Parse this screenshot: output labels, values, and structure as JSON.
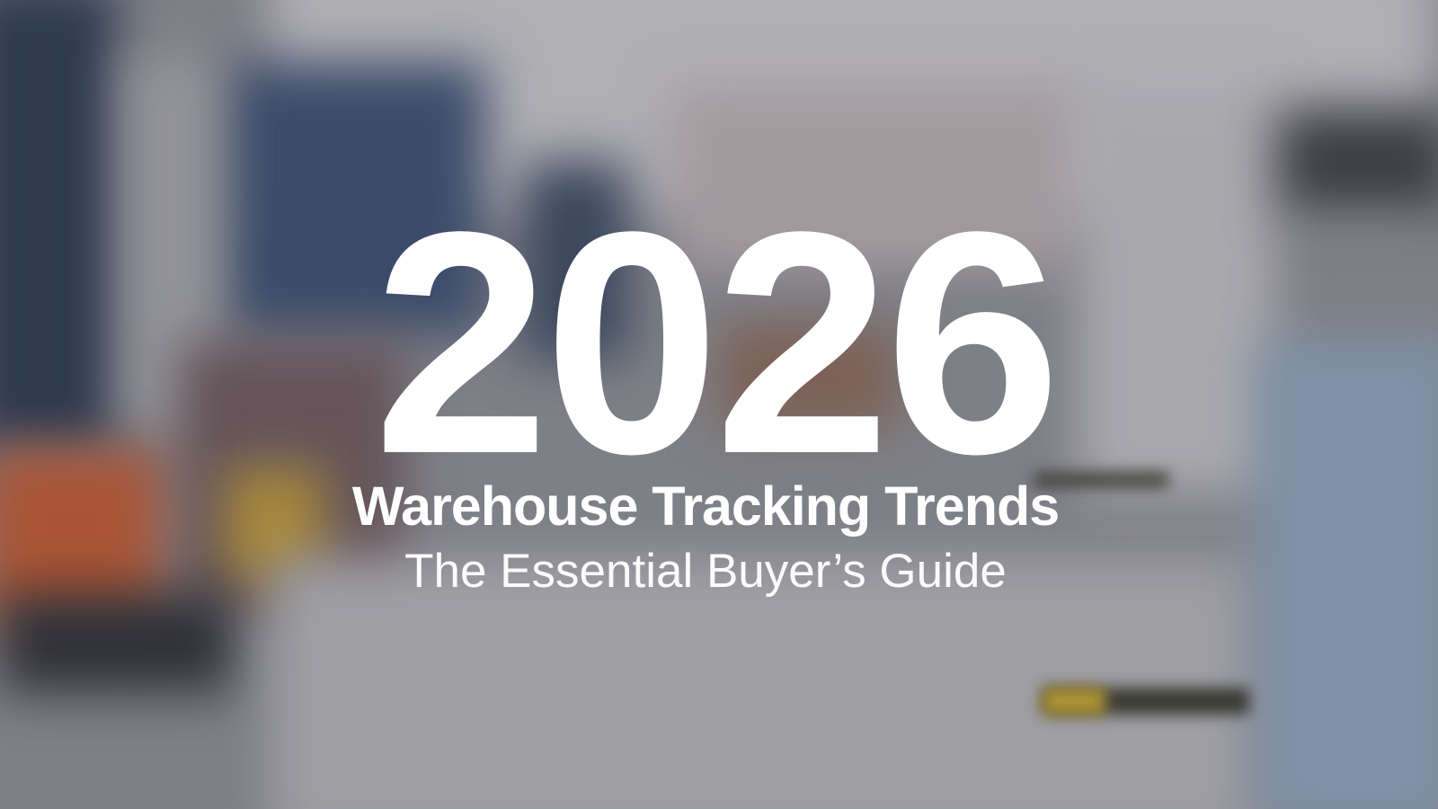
{
  "hero": {
    "year": "2026",
    "title": "Warehouse Tracking Trends",
    "subtitle": "The Essential Buyer’s Guide"
  },
  "colors": {
    "text": "#ffffff",
    "background_tone": "#8d8f95"
  }
}
